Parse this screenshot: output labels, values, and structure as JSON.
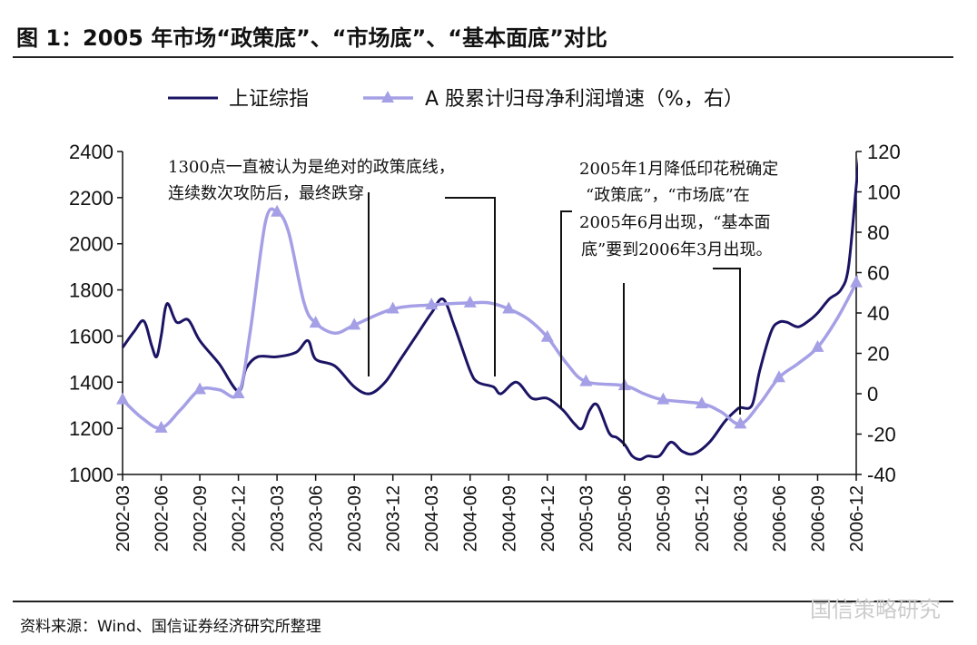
{
  "title": "图 1：2005 年市场“政策底”、“市场底”、“基本面底”对比",
  "source": "资料来源：Wind、国信证券经济研究所整理",
  "watermark": "国信策略研究",
  "chart_data": {
    "type": "line",
    "x": [
      "2002-03",
      "2002-06",
      "2002-09",
      "2002-12",
      "2003-03",
      "2003-06",
      "2003-09",
      "2003-12",
      "2004-03",
      "2004-06",
      "2004-09",
      "2004-12",
      "2005-03",
      "2005-06",
      "2005-09",
      "2005-12",
      "2006-03",
      "2006-06",
      "2006-09",
      "2006-12"
    ],
    "left_axis": {
      "ylim": [
        1000,
        2400
      ],
      "ticks": [
        1000,
        1200,
        1400,
        1600,
        1800,
        2000,
        2200,
        2400
      ]
    },
    "right_axis": {
      "ylim": [
        -40,
        120
      ],
      "ticks": [
        -40,
        -20,
        0,
        20,
        40,
        60,
        80,
        100,
        120
      ]
    },
    "series": [
      {
        "name": "上证综指",
        "axis": "left",
        "color": "#1b1464",
        "points": [
          [
            0,
            1550
          ],
          [
            0.3,
            1620
          ],
          [
            0.55,
            1665
          ],
          [
            0.75,
            1560
          ],
          [
            0.88,
            1510
          ],
          [
            1.0,
            1600
          ],
          [
            1.15,
            1740
          ],
          [
            1.4,
            1660
          ],
          [
            1.7,
            1670
          ],
          [
            2.0,
            1580
          ],
          [
            2.5,
            1480
          ],
          [
            3.0,
            1360
          ],
          [
            3.2,
            1460
          ],
          [
            3.5,
            1510
          ],
          [
            4.0,
            1510
          ],
          [
            4.5,
            1530
          ],
          [
            4.8,
            1580
          ],
          [
            5.0,
            1500
          ],
          [
            5.5,
            1470
          ],
          [
            6.0,
            1380
          ],
          [
            6.4,
            1350
          ],
          [
            6.8,
            1400
          ],
          [
            7.2,
            1500
          ],
          [
            7.6,
            1600
          ],
          [
            8.0,
            1700
          ],
          [
            8.3,
            1760
          ],
          [
            8.6,
            1640
          ],
          [
            9.0,
            1450
          ],
          [
            9.2,
            1400
          ],
          [
            9.6,
            1380
          ],
          [
            9.8,
            1350
          ],
          [
            10.2,
            1400
          ],
          [
            10.6,
            1330
          ],
          [
            11.0,
            1330
          ],
          [
            11.4,
            1280
          ],
          [
            11.7,
            1220
          ],
          [
            11.9,
            1200
          ],
          [
            12.1,
            1280
          ],
          [
            12.3,
            1300
          ],
          [
            12.6,
            1180
          ],
          [
            12.8,
            1160
          ],
          [
            13.0,
            1130
          ],
          [
            13.2,
            1080
          ],
          [
            13.4,
            1065
          ],
          [
            13.6,
            1080
          ],
          [
            13.9,
            1080
          ],
          [
            14.2,
            1140
          ],
          [
            14.5,
            1100
          ],
          [
            14.8,
            1090
          ],
          [
            15.2,
            1140
          ],
          [
            15.6,
            1230
          ],
          [
            15.9,
            1280
          ],
          [
            16.0,
            1290
          ],
          [
            16.3,
            1300
          ],
          [
            16.5,
            1450
          ],
          [
            16.8,
            1620
          ],
          [
            17.0,
            1660
          ],
          [
            17.2,
            1660
          ],
          [
            17.5,
            1640
          ],
          [
            17.8,
            1670
          ],
          [
            18.0,
            1700
          ],
          [
            18.3,
            1760
          ],
          [
            18.6,
            1800
          ],
          [
            18.8,
            1900
          ],
          [
            19.0,
            2250
          ],
          [
            19.1,
            2400
          ]
        ]
      },
      {
        "name": "A 股累计归母净利润增速（%，右）",
        "axis": "right",
        "color": "#a5a0e6",
        "markers": [
          -3,
          -17,
          2,
          0,
          90,
          35,
          34,
          42,
          44,
          45,
          42,
          28,
          6,
          4,
          -3,
          -5,
          -15,
          8,
          23,
          55
        ],
        "points": [
          [
            0,
            -3
          ],
          [
            0.5,
            -12
          ],
          [
            1,
            -17
          ],
          [
            1.5,
            -8
          ],
          [
            2,
            2
          ],
          [
            2.5,
            2
          ],
          [
            3,
            0
          ],
          [
            3.3,
            30
          ],
          [
            3.7,
            85
          ],
          [
            4,
            90
          ],
          [
            4.3,
            80
          ],
          [
            4.7,
            45
          ],
          [
            5,
            35
          ],
          [
            5.5,
            30
          ],
          [
            6,
            34
          ],
          [
            7,
            42
          ],
          [
            8,
            44
          ],
          [
            9,
            45
          ],
          [
            9.5,
            45
          ],
          [
            10,
            42
          ],
          [
            10.5,
            37
          ],
          [
            11,
            28
          ],
          [
            11.5,
            15
          ],
          [
            12,
            6
          ],
          [
            13,
            4
          ],
          [
            13.5,
            0
          ],
          [
            14,
            -3
          ],
          [
            15,
            -5
          ],
          [
            15.5,
            -9
          ],
          [
            16,
            -15
          ],
          [
            16.5,
            -5
          ],
          [
            17,
            8
          ],
          [
            17.5,
            15
          ],
          [
            18,
            23
          ],
          [
            18.5,
            37
          ],
          [
            19,
            55
          ],
          [
            19.1,
            60
          ]
        ]
      }
    ],
    "annotations": [
      {
        "lines": [
          "1300点一直被认为是绝对的政策底线，",
          "连续数次攻防后，最终跌穿"
        ]
      },
      {
        "lines": [
          "2005年1月降低印花税确定",
          "“政策底”，“市场底”在",
          "2005年6月出现，“基本面",
          "底”要到2006年3月出现。"
        ]
      }
    ]
  }
}
